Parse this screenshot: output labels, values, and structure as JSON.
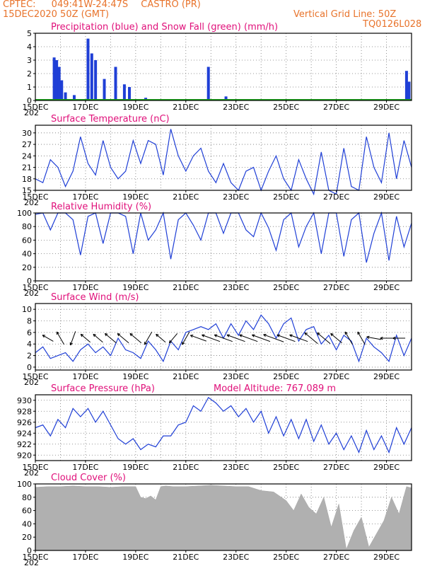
{
  "header": {
    "source": "CPTEC:",
    "coords": "049:41W-24:47S",
    "station": "CASTRO (PR)",
    "run": "15DEC2020 50Z (GMT)",
    "grid_note": "Vertical Grid Line: 50Z",
    "model": "TQ0126L028"
  },
  "colors": {
    "header": "#e8732b",
    "title": "#e0107a",
    "line": "#1f3fd6",
    "snow": "#1aa31a",
    "cloud": "#b0b0b0"
  },
  "x_labels": [
    "15DEC",
    "17DEC",
    "19DEC",
    "21DEC",
    "23DEC",
    "25DEC",
    "27DEC",
    "29DEC"
  ],
  "x_stub": "202",
  "chart_data": [
    {
      "type": "bar",
      "title": "Precipitation (blue) and Snow Fall (green) (mm/h)",
      "ylim": [
        0,
        5
      ],
      "yticks": [
        0,
        1,
        2,
        3,
        4,
        5
      ],
      "x_domain_days": [
        0,
        15
      ],
      "series": [
        {
          "name": "Precipitation",
          "days": [
            0.75,
            0.85,
            0.95,
            1.05,
            1.2,
            1.55,
            2.1,
            2.25,
            2.4,
            2.75,
            3.2,
            3.55,
            3.75,
            4.4,
            6.9,
            7.6,
            14.8,
            14.9
          ],
          "values": [
            3.2,
            3.0,
            2.5,
            1.5,
            0.6,
            0.4,
            4.6,
            3.5,
            3.0,
            1.6,
            2.5,
            1.2,
            1.0,
            0.2,
            2.5,
            0.3,
            2.2,
            1.4
          ]
        },
        {
          "name": "Snow Fall",
          "days": [],
          "values": []
        }
      ]
    },
    {
      "type": "line",
      "title": "Surface Temperature (nC)",
      "ylim": [
        15,
        32
      ],
      "yticks": [
        15,
        18,
        21,
        24,
        27,
        30
      ],
      "x_domain_days": [
        0,
        15
      ],
      "x": [
        0,
        0.3,
        0.6,
        0.9,
        1.2,
        1.5,
        1.8,
        2.1,
        2.4,
        2.7,
        3.0,
        3.3,
        3.6,
        3.9,
        4.2,
        4.5,
        4.8,
        5.1,
        5.4,
        5.7,
        6.0,
        6.3,
        6.6,
        6.9,
        7.2,
        7.5,
        7.8,
        8.1,
        8.4,
        8.7,
        9.0,
        9.3,
        9.6,
        9.9,
        10.2,
        10.5,
        10.8,
        11.1,
        11.4,
        11.7,
        12.0,
        12.3,
        12.6,
        12.9,
        13.2,
        13.5,
        13.8,
        14.1,
        14.4,
        14.7,
        15.0
      ],
      "y": [
        18,
        17,
        23,
        21,
        16,
        20,
        29,
        22,
        19,
        28,
        21,
        18,
        20,
        28,
        22,
        28,
        27,
        19,
        31,
        24,
        20,
        24,
        26,
        20,
        17,
        22,
        17,
        15,
        20,
        21,
        15,
        20,
        24,
        18,
        15,
        23,
        18,
        14,
        25,
        15,
        14,
        26,
        16,
        15,
        29,
        21,
        17,
        30,
        18,
        28,
        21
      ]
    },
    {
      "type": "line",
      "title": "Relative Humidity (%)",
      "ylim": [
        0,
        100
      ],
      "yticks": [
        0,
        20,
        40,
        60,
        80,
        100
      ],
      "x_domain_days": [
        0,
        15
      ],
      "x": [
        0,
        0.3,
        0.6,
        0.9,
        1.2,
        1.5,
        1.8,
        2.1,
        2.4,
        2.7,
        3.0,
        3.3,
        3.6,
        3.9,
        4.2,
        4.5,
        4.8,
        5.1,
        5.4,
        5.7,
        6.0,
        6.3,
        6.6,
        6.9,
        7.2,
        7.5,
        7.8,
        8.1,
        8.4,
        8.7,
        9.0,
        9.3,
        9.6,
        9.9,
        10.2,
        10.5,
        10.8,
        11.1,
        11.4,
        11.7,
        12.0,
        12.3,
        12.6,
        12.9,
        13.2,
        13.5,
        13.8,
        14.1,
        14.4,
        14.7,
        15.0
      ],
      "y": [
        98,
        100,
        75,
        100,
        100,
        90,
        38,
        95,
        100,
        55,
        100,
        100,
        95,
        40,
        100,
        60,
        75,
        100,
        32,
        90,
        100,
        82,
        60,
        100,
        100,
        70,
        100,
        100,
        75,
        65,
        100,
        78,
        45,
        90,
        100,
        50,
        80,
        100,
        40,
        100,
        100,
        36,
        90,
        100,
        27,
        70,
        100,
        30,
        95,
        50,
        85
      ]
    },
    {
      "type": "line",
      "title": "Surface Wind (m/s)",
      "ylim": [
        -0.5,
        11
      ],
      "yticks": [
        0,
        2,
        4,
        6,
        8,
        10
      ],
      "x_domain_days": [
        0,
        15
      ],
      "x": [
        0,
        0.3,
        0.6,
        0.9,
        1.2,
        1.5,
        1.8,
        2.1,
        2.4,
        2.7,
        3.0,
        3.3,
        3.6,
        3.9,
        4.2,
        4.5,
        4.8,
        5.1,
        5.4,
        5.7,
        6.0,
        6.3,
        6.6,
        6.9,
        7.2,
        7.5,
        7.8,
        8.1,
        8.4,
        8.7,
        9.0,
        9.3,
        9.6,
        9.9,
        10.2,
        10.5,
        10.8,
        11.1,
        11.4,
        11.7,
        12.0,
        12.3,
        12.6,
        12.9,
        13.2,
        13.5,
        13.8,
        14.1,
        14.4,
        14.7,
        15.0
      ],
      "y": [
        2.5,
        3.5,
        1.5,
        2.0,
        2.5,
        1.0,
        3.0,
        4.0,
        2.5,
        3.5,
        2.0,
        5.0,
        3.0,
        2.5,
        1.5,
        4.5,
        3.0,
        1.0,
        4.5,
        3.0,
        6.0,
        6.5,
        7.0,
        6.5,
        7.5,
        5.0,
        7.5,
        5.5,
        8.0,
        6.5,
        9.0,
        7.5,
        5.0,
        7.5,
        8.5,
        4.5,
        6.5,
        7.0,
        4.0,
        5.5,
        3.0,
        5.5,
        4.5,
        1.0,
        5.0,
        3.5,
        2.5,
        1.0,
        5.5,
        2.0,
        5.0
      ],
      "arrows": {
        "days": [
          0.5,
          1.0,
          1.5,
          2.0,
          2.5,
          3.0,
          3.5,
          4.0,
          4.5,
          5.0,
          5.5,
          6.0,
          6.5,
          7.0,
          7.5,
          8.0,
          8.5,
          9.0,
          9.5,
          10.0,
          10.5,
          11.0,
          11.5,
          12.0,
          12.5,
          13.0,
          13.5,
          14.0,
          14.5
        ],
        "speed": [
          3,
          4,
          4,
          3,
          3,
          4,
          4,
          4,
          4,
          3,
          3,
          4,
          5,
          6,
          6,
          6,
          6,
          6,
          7,
          6,
          6,
          5,
          5,
          4,
          4,
          4,
          4,
          3,
          3
        ],
        "dir_deg": [
          150,
          120,
          250,
          140,
          140,
          140,
          140,
          140,
          240,
          140,
          230,
          240,
          160,
          160,
          160,
          160,
          160,
          160,
          160,
          160,
          160,
          140,
          140,
          140,
          120,
          120,
          170,
          180,
          180
        ]
      }
    },
    {
      "type": "line",
      "title": "Surface Pressure (hPa)",
      "altitude_label": "Model Altitude: 767.089 m",
      "ylim": [
        919,
        931
      ],
      "yticks": [
        920,
        922,
        924,
        926,
        928,
        930
      ],
      "x_domain_days": [
        0,
        15
      ],
      "x": [
        0,
        0.3,
        0.6,
        0.9,
        1.2,
        1.5,
        1.8,
        2.1,
        2.4,
        2.7,
        3.0,
        3.3,
        3.6,
        3.9,
        4.2,
        4.5,
        4.8,
        5.1,
        5.4,
        5.7,
        6.0,
        6.3,
        6.6,
        6.9,
        7.2,
        7.5,
        7.8,
        8.1,
        8.4,
        8.7,
        9.0,
        9.3,
        9.6,
        9.9,
        10.2,
        10.5,
        10.8,
        11.1,
        11.4,
        11.7,
        12.0,
        12.3,
        12.6,
        12.9,
        13.2,
        13.5,
        13.8,
        14.1,
        14.4,
        14.7,
        15.0
      ],
      "y": [
        925.0,
        925.5,
        923.5,
        926.5,
        925.0,
        928.5,
        927.0,
        928.5,
        926.0,
        928.0,
        925.5,
        923.0,
        922.0,
        923.0,
        921.0,
        922.0,
        921.5,
        923.5,
        923.5,
        925.5,
        926.0,
        929.0,
        928.0,
        930.5,
        929.5,
        928.0,
        929.0,
        927.0,
        928.5,
        926.0,
        928.0,
        924.0,
        927.0,
        923.5,
        926.5,
        923.0,
        926.5,
        922.5,
        925.5,
        922.0,
        924.0,
        921.0,
        923.5,
        920.5,
        924.5,
        921.0,
        923.5,
        920.5,
        925.0,
        922.0,
        925.0
      ]
    },
    {
      "type": "area",
      "title": "Cloud Cover (%)",
      "ylim": [
        0,
        100
      ],
      "yticks": [
        0,
        20,
        40,
        60,
        80,
        100
      ],
      "x_domain_days": [
        0,
        15
      ],
      "x": [
        0,
        0.5,
        1.0,
        1.5,
        2.0,
        2.5,
        3.0,
        3.5,
        4.0,
        4.2,
        4.4,
        4.6,
        4.8,
        5.0,
        5.2,
        5.5,
        6.0,
        6.5,
        7.0,
        7.5,
        8.0,
        8.5,
        9.0,
        9.5,
        10.0,
        10.3,
        10.6,
        10.9,
        11.2,
        11.5,
        11.8,
        12.1,
        12.4,
        12.7,
        13.0,
        13.3,
        13.6,
        13.9,
        14.2,
        14.5,
        14.8,
        15.0
      ],
      "y": [
        95,
        96,
        96,
        97,
        96,
        96,
        95,
        96,
        96,
        80,
        78,
        82,
        76,
        96,
        97,
        96,
        96,
        97,
        98,
        97,
        96,
        96,
        90,
        88,
        75,
        60,
        85,
        65,
        55,
        80,
        35,
        70,
        2,
        30,
        50,
        5,
        25,
        45,
        80,
        55,
        96,
        94
      ]
    }
  ]
}
